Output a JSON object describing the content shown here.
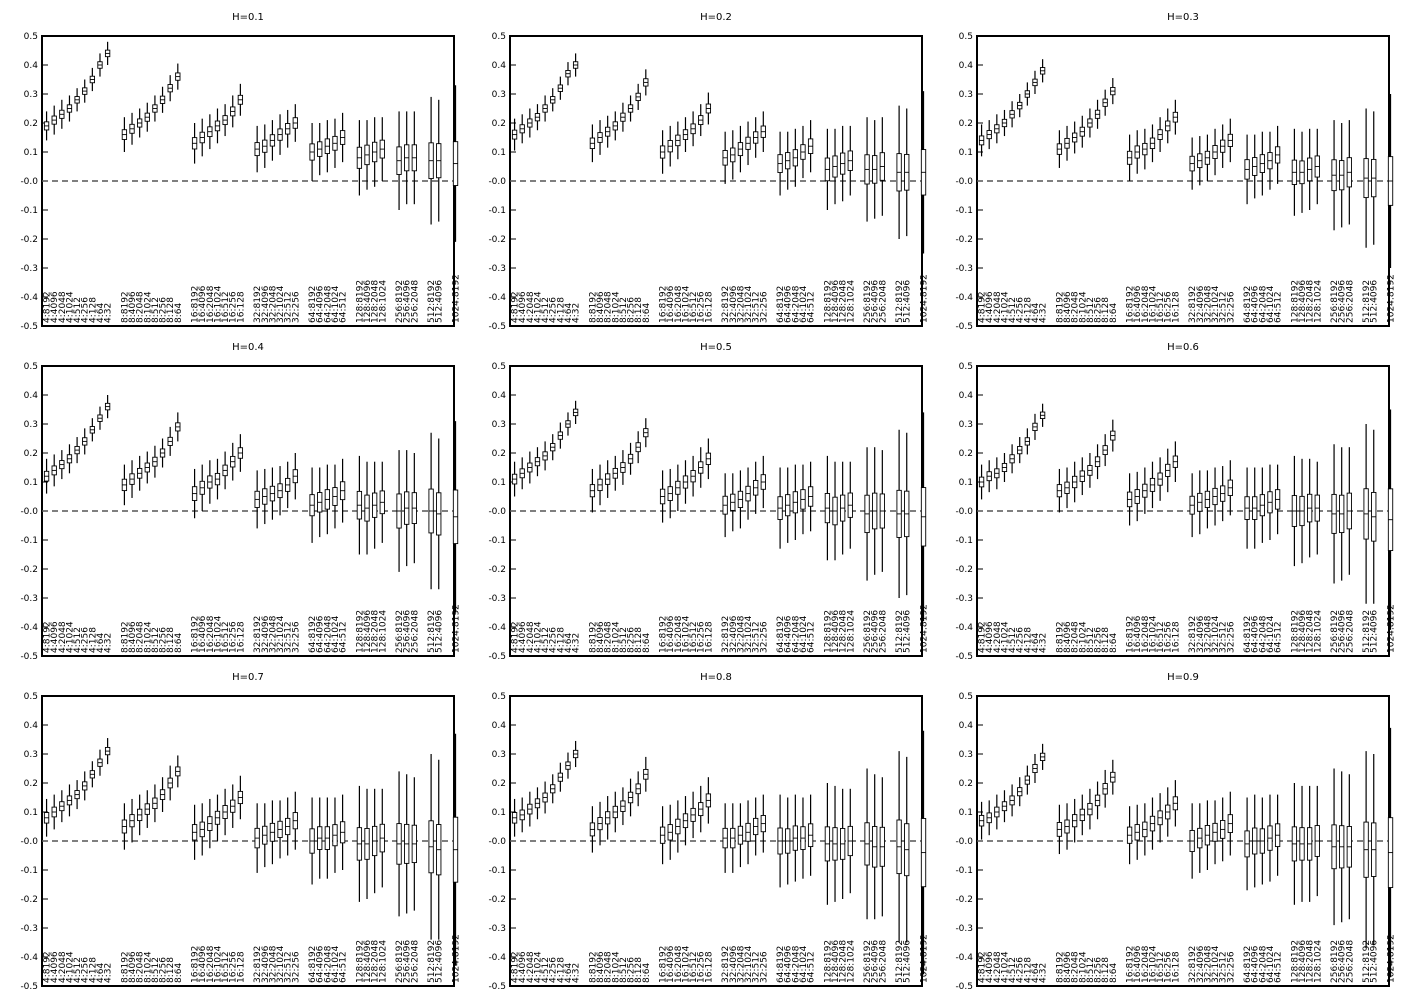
{
  "chart_data": {
    "type": "boxplot",
    "layout": "3x3 grid of panels",
    "ylim": [
      -0.5,
      0.5
    ],
    "yticks": [
      "0.5",
      "0.4",
      "0.3",
      "0.2",
      "0.1",
      "-0.0",
      "-0.1",
      "-0.2",
      "-0.3",
      "-0.4",
      "-0.5"
    ],
    "reference_line": 0.0,
    "categories": [
      "4:8192",
      "4:4096",
      "4:2048",
      "4:1024",
      "4:512",
      "4:256",
      "4:128",
      "4:64",
      "4:32",
      "8:8192",
      "8:4096",
      "8:2048",
      "8:1024",
      "8:512",
      "8:256",
      "8:128",
      "8:64",
      "16:8192",
      "16:4096",
      "16:2048",
      "16:1024",
      "16:512",
      "16:256",
      "16:128",
      "32:8192",
      "32:4096",
      "32:2048",
      "32:1024",
      "32:512",
      "32:256",
      "64:8192",
      "64:4096",
      "64:2048",
      "64:1024",
      "64:512",
      "128:8192",
      "128:4096",
      "128:2048",
      "128:1024",
      "256:8192",
      "256:4096",
      "256:2048",
      "512:8192",
      "512:4096",
      "1024:8192"
    ],
    "panels": [
      {
        "title": "H=0.1",
        "center": [
          0.19,
          0.21,
          0.23,
          0.25,
          0.28,
          0.31,
          0.35,
          0.4,
          0.44,
          0.16,
          0.18,
          0.2,
          0.22,
          0.25,
          0.28,
          0.32,
          0.36,
          0.13,
          0.15,
          0.17,
          0.19,
          0.21,
          0.24,
          0.28,
          0.11,
          0.12,
          0.14,
          0.16,
          0.18,
          0.2,
          0.1,
          0.11,
          0.12,
          0.13,
          0.15,
          0.08,
          0.09,
          0.1,
          0.11,
          0.07,
          0.08,
          0.08,
          0.07,
          0.07,
          0.06
        ],
        "half_range": [
          0.05,
          0.05,
          0.05,
          0.045,
          0.04,
          0.04,
          0.04,
          0.04,
          0.04,
          0.06,
          0.055,
          0.05,
          0.05,
          0.045,
          0.045,
          0.045,
          0.045,
          0.07,
          0.065,
          0.06,
          0.06,
          0.055,
          0.055,
          0.055,
          0.08,
          0.075,
          0.07,
          0.07,
          0.065,
          0.065,
          0.1,
          0.09,
          0.09,
          0.085,
          0.085,
          0.13,
          0.12,
          0.12,
          0.11,
          0.17,
          0.16,
          0.16,
          0.22,
          0.21,
          0.27
        ]
      },
      {
        "title": "H=0.2",
        "center": [
          0.16,
          0.18,
          0.2,
          0.22,
          0.25,
          0.28,
          0.32,
          0.37,
          0.4,
          0.13,
          0.15,
          0.17,
          0.19,
          0.22,
          0.25,
          0.29,
          0.34,
          0.1,
          0.12,
          0.14,
          0.16,
          0.18,
          0.21,
          0.25,
          0.08,
          0.09,
          0.11,
          0.13,
          0.15,
          0.17,
          0.06,
          0.07,
          0.08,
          0.1,
          0.12,
          0.04,
          0.05,
          0.06,
          0.07,
          0.04,
          0.04,
          0.05,
          0.03,
          0.03,
          0.03
        ],
        "half_range": [
          0.055,
          0.05,
          0.05,
          0.045,
          0.045,
          0.04,
          0.04,
          0.04,
          0.04,
          0.065,
          0.06,
          0.055,
          0.05,
          0.05,
          0.045,
          0.045,
          0.045,
          0.075,
          0.07,
          0.065,
          0.06,
          0.06,
          0.055,
          0.055,
          0.09,
          0.085,
          0.08,
          0.075,
          0.07,
          0.07,
          0.11,
          0.1,
          0.1,
          0.09,
          0.09,
          0.14,
          0.13,
          0.13,
          0.12,
          0.18,
          0.17,
          0.17,
          0.23,
          0.22,
          0.28
        ]
      },
      {
        "title": "H=0.3",
        "center": [
          0.14,
          0.16,
          0.18,
          0.2,
          0.23,
          0.26,
          0.3,
          0.34,
          0.38,
          0.11,
          0.13,
          0.15,
          0.17,
          0.2,
          0.23,
          0.27,
          0.31,
          0.08,
          0.1,
          0.11,
          0.13,
          0.16,
          0.19,
          0.22,
          0.06,
          0.07,
          0.08,
          0.1,
          0.12,
          0.14,
          0.04,
          0.05,
          0.06,
          0.07,
          0.09,
          0.03,
          0.03,
          0.04,
          0.05,
          0.02,
          0.02,
          0.03,
          0.01,
          0.01,
          0.0
        ],
        "half_range": [
          0.055,
          0.05,
          0.05,
          0.045,
          0.045,
          0.04,
          0.04,
          0.04,
          0.04,
          0.065,
          0.06,
          0.055,
          0.055,
          0.05,
          0.05,
          0.045,
          0.045,
          0.08,
          0.075,
          0.07,
          0.065,
          0.06,
          0.06,
          0.06,
          0.09,
          0.085,
          0.08,
          0.08,
          0.075,
          0.075,
          0.12,
          0.11,
          0.11,
          0.1,
          0.1,
          0.15,
          0.14,
          0.14,
          0.13,
          0.19,
          0.18,
          0.18,
          0.24,
          0.23,
          0.3
        ]
      },
      {
        "title": "H=0.4",
        "center": [
          0.12,
          0.14,
          0.16,
          0.18,
          0.21,
          0.24,
          0.28,
          0.32,
          0.36,
          0.09,
          0.11,
          0.13,
          0.15,
          0.17,
          0.2,
          0.24,
          0.29,
          0.06,
          0.08,
          0.1,
          0.11,
          0.14,
          0.17,
          0.2,
          0.04,
          0.05,
          0.06,
          0.07,
          0.09,
          0.12,
          0.02,
          0.03,
          0.04,
          0.05,
          0.07,
          0.02,
          0.01,
          0.02,
          0.03,
          0.0,
          0.01,
          0.01,
          0.0,
          -0.01,
          -0.02
        ],
        "half_range": [
          0.06,
          0.055,
          0.05,
          0.05,
          0.045,
          0.045,
          0.04,
          0.04,
          0.04,
          0.07,
          0.065,
          0.06,
          0.055,
          0.055,
          0.05,
          0.05,
          0.05,
          0.085,
          0.08,
          0.075,
          0.07,
          0.065,
          0.065,
          0.065,
          0.1,
          0.095,
          0.09,
          0.085,
          0.08,
          0.08,
          0.13,
          0.12,
          0.12,
          0.11,
          0.11,
          0.17,
          0.16,
          0.15,
          0.14,
          0.21,
          0.2,
          0.19,
          0.27,
          0.26,
          0.33
        ]
      },
      {
        "title": "H=0.5",
        "center": [
          0.11,
          0.13,
          0.15,
          0.17,
          0.19,
          0.22,
          0.26,
          0.3,
          0.34,
          0.07,
          0.09,
          0.11,
          0.13,
          0.15,
          0.18,
          0.22,
          0.27,
          0.05,
          0.06,
          0.08,
          0.1,
          0.12,
          0.15,
          0.18,
          0.02,
          0.03,
          0.04,
          0.06,
          0.08,
          0.1,
          0.01,
          0.02,
          0.03,
          0.04,
          0.05,
          0.01,
          0.0,
          0.01,
          0.02,
          -0.01,
          0.0,
          0.0,
          -0.01,
          -0.01,
          -0.02
        ],
        "half_range": [
          0.06,
          0.055,
          0.055,
          0.05,
          0.05,
          0.045,
          0.045,
          0.04,
          0.04,
          0.075,
          0.07,
          0.065,
          0.06,
          0.06,
          0.055,
          0.055,
          0.05,
          0.09,
          0.085,
          0.08,
          0.075,
          0.07,
          0.07,
          0.07,
          0.11,
          0.1,
          0.1,
          0.09,
          0.09,
          0.09,
          0.14,
          0.13,
          0.13,
          0.12,
          0.12,
          0.18,
          0.17,
          0.16,
          0.15,
          0.23,
          0.22,
          0.21,
          0.29,
          0.28,
          0.36
        ]
      },
      {
        "title": "H=0.6",
        "center": [
          0.1,
          0.12,
          0.13,
          0.15,
          0.18,
          0.21,
          0.24,
          0.29,
          0.33,
          0.07,
          0.08,
          0.1,
          0.12,
          0.14,
          0.17,
          0.21,
          0.26,
          0.04,
          0.05,
          0.07,
          0.09,
          0.11,
          0.14,
          0.17,
          0.02,
          0.03,
          0.04,
          0.05,
          0.06,
          0.08,
          0.01,
          0.01,
          0.02,
          0.03,
          0.04,
          0.0,
          0.0,
          0.01,
          0.01,
          -0.01,
          -0.01,
          0.0,
          -0.01,
          -0.02,
          -0.03
        ],
        "half_range": [
          0.06,
          0.055,
          0.055,
          0.05,
          0.05,
          0.045,
          0.045,
          0.045,
          0.04,
          0.075,
          0.07,
          0.07,
          0.065,
          0.06,
          0.06,
          0.055,
          0.055,
          0.09,
          0.085,
          0.08,
          0.08,
          0.075,
          0.075,
          0.07,
          0.11,
          0.11,
          0.1,
          0.1,
          0.095,
          0.095,
          0.14,
          0.14,
          0.13,
          0.13,
          0.12,
          0.19,
          0.18,
          0.17,
          0.16,
          0.24,
          0.23,
          0.22,
          0.31,
          0.3,
          0.38
        ]
      },
      {
        "title": "H=0.7",
        "center": [
          0.08,
          0.1,
          0.12,
          0.14,
          0.16,
          0.19,
          0.23,
          0.27,
          0.31,
          0.05,
          0.07,
          0.09,
          0.11,
          0.13,
          0.16,
          0.2,
          0.24,
          0.03,
          0.04,
          0.06,
          0.08,
          0.1,
          0.12,
          0.15,
          0.01,
          0.02,
          0.03,
          0.04,
          0.05,
          0.07,
          0.0,
          0.01,
          0.01,
          0.02,
          0.03,
          -0.01,
          -0.01,
          0.0,
          0.01,
          -0.01,
          -0.01,
          -0.01,
          -0.02,
          -0.03,
          -0.03
        ],
        "half_range": [
          0.065,
          0.06,
          0.055,
          0.055,
          0.05,
          0.05,
          0.045,
          0.045,
          0.045,
          0.08,
          0.075,
          0.07,
          0.065,
          0.065,
          0.06,
          0.06,
          0.055,
          0.095,
          0.09,
          0.085,
          0.08,
          0.08,
          0.075,
          0.075,
          0.12,
          0.11,
          0.11,
          0.1,
          0.1,
          0.1,
          0.15,
          0.14,
          0.14,
          0.13,
          0.13,
          0.2,
          0.19,
          0.18,
          0.17,
          0.25,
          0.24,
          0.23,
          0.32,
          0.31,
          0.4
        ]
      },
      {
        "title": "H=0.8",
        "center": [
          0.08,
          0.09,
          0.11,
          0.13,
          0.15,
          0.18,
          0.22,
          0.26,
          0.3,
          0.04,
          0.06,
          0.08,
          0.1,
          0.12,
          0.15,
          0.18,
          0.23,
          0.02,
          0.03,
          0.05,
          0.07,
          0.09,
          0.11,
          0.14,
          0.01,
          0.01,
          0.02,
          0.03,
          0.05,
          0.06,
          0.0,
          0.0,
          0.01,
          0.01,
          0.02,
          -0.01,
          -0.01,
          -0.01,
          0.0,
          -0.01,
          -0.02,
          -0.02,
          -0.02,
          -0.03,
          -0.04
        ],
        "half_range": [
          0.065,
          0.06,
          0.06,
          0.055,
          0.055,
          0.05,
          0.05,
          0.045,
          0.045,
          0.08,
          0.075,
          0.075,
          0.07,
          0.065,
          0.065,
          0.06,
          0.06,
          0.1,
          0.095,
          0.09,
          0.085,
          0.08,
          0.08,
          0.08,
          0.12,
          0.12,
          0.11,
          0.11,
          0.1,
          0.1,
          0.16,
          0.15,
          0.15,
          0.14,
          0.14,
          0.21,
          0.2,
          0.19,
          0.18,
          0.26,
          0.25,
          0.24,
          0.33,
          0.32,
          0.42
        ]
      },
      {
        "title": "H=0.9",
        "center": [
          0.07,
          0.08,
          0.1,
          0.12,
          0.14,
          0.17,
          0.21,
          0.25,
          0.29,
          0.04,
          0.05,
          0.07,
          0.09,
          0.11,
          0.14,
          0.18,
          0.22,
          0.02,
          0.03,
          0.04,
          0.06,
          0.08,
          0.1,
          0.13,
          0.0,
          0.01,
          0.02,
          0.03,
          0.04,
          0.06,
          -0.01,
          0.0,
          0.0,
          0.01,
          0.02,
          -0.01,
          -0.01,
          -0.01,
          0.0,
          -0.02,
          -0.02,
          -0.02,
          -0.03,
          -0.03,
          -0.04
        ],
        "half_range": [
          0.065,
          0.06,
          0.06,
          0.055,
          0.055,
          0.05,
          0.05,
          0.05,
          0.045,
          0.085,
          0.08,
          0.075,
          0.07,
          0.07,
          0.065,
          0.065,
          0.06,
          0.1,
          0.095,
          0.09,
          0.09,
          0.085,
          0.085,
          0.08,
          0.13,
          0.12,
          0.12,
          0.11,
          0.11,
          0.11,
          0.16,
          0.16,
          0.15,
          0.15,
          0.14,
          0.21,
          0.2,
          0.2,
          0.19,
          0.27,
          0.26,
          0.25,
          0.34,
          0.33,
          0.43
        ]
      }
    ]
  }
}
